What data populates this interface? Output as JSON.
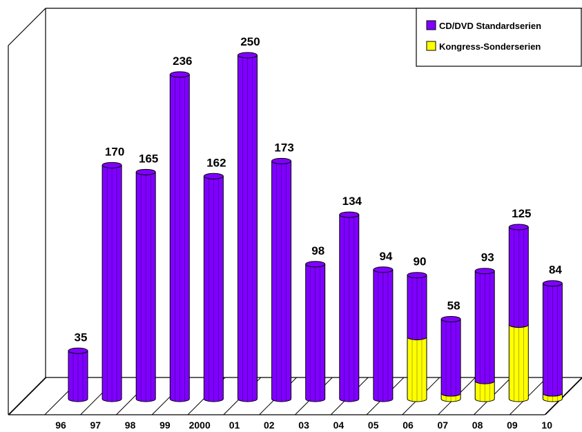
{
  "chart_data": {
    "type": "bar",
    "stacked": true,
    "categories": [
      "96",
      "97",
      "98",
      "99",
      "2000",
      "01",
      "02",
      "03",
      "04",
      "05",
      "06",
      "07",
      "08",
      "09",
      "10"
    ],
    "series": [
      {
        "name": "CD/DVD Standardserien",
        "color": "#7f00ff",
        "values": [
          35,
          170,
          165,
          236,
          162,
          250,
          173,
          98,
          134,
          94,
          45,
          54,
          80,
          71,
          80
        ]
      },
      {
        "name": "Kongress-Sonderserien",
        "color": "#ffff00",
        "values": [
          0,
          0,
          0,
          0,
          0,
          0,
          0,
          0,
          0,
          0,
          45,
          4,
          13,
          54,
          4
        ]
      }
    ],
    "totals": [
      35,
      170,
      165,
      236,
      162,
      250,
      173,
      98,
      134,
      94,
      90,
      58,
      93,
      125,
      84
    ],
    "total_labels": [
      "35",
      "170",
      "165",
      "236",
      "162",
      "250",
      "173",
      "98",
      "134",
      "94",
      "90",
      "58",
      "93",
      "125",
      "84"
    ],
    "ylim": [
      0,
      265
    ],
    "grid": false,
    "legend_position": "top-right",
    "title": "",
    "xlabel": "",
    "ylabel": ""
  }
}
